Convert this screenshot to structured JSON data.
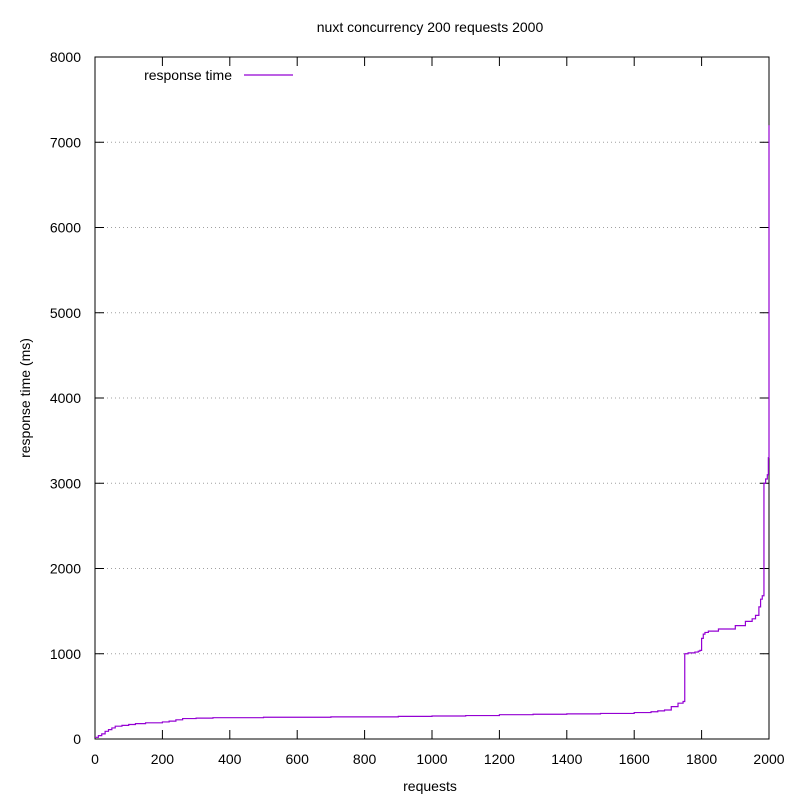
{
  "chart_data": {
    "type": "line",
    "title": "nuxt concurrency 200 requests 2000",
    "xlabel": "requests",
    "ylabel": "response time (ms)",
    "xlim": [
      0,
      2000
    ],
    "ylim": [
      0,
      8000
    ],
    "xticks": [
      0,
      200,
      400,
      600,
      800,
      1000,
      1200,
      1400,
      1600,
      1800,
      2000
    ],
    "yticks": [
      0,
      1000,
      2000,
      3000,
      4000,
      5000,
      6000,
      7000,
      8000
    ],
    "grid": "horizontal dotted",
    "legend": {
      "position": "top-left"
    },
    "series": [
      {
        "name": "response time",
        "color": "#9400d3",
        "step": true,
        "x": [
          0,
          10,
          20,
          30,
          40,
          50,
          60,
          80,
          100,
          120,
          150,
          200,
          220,
          240,
          260,
          300,
          350,
          500,
          700,
          900,
          1000,
          1100,
          1200,
          1300,
          1400,
          1500,
          1600,
          1650,
          1670,
          1690,
          1710,
          1730,
          1745,
          1750,
          1760,
          1780,
          1790,
          1795,
          1800,
          1805,
          1810,
          1820,
          1850,
          1900,
          1930,
          1950,
          1960,
          1970,
          1975,
          1980,
          1985,
          1990,
          1995,
          1998,
          2000,
          2000
        ],
        "y": [
          20,
          40,
          60,
          90,
          110,
          130,
          150,
          160,
          170,
          180,
          190,
          200,
          210,
          225,
          240,
          245,
          250,
          255,
          260,
          265,
          270,
          275,
          285,
          290,
          295,
          300,
          310,
          320,
          330,
          340,
          380,
          420,
          440,
          1000,
          1010,
          1020,
          1030,
          1040,
          1180,
          1230,
          1250,
          1265,
          1290,
          1330,
          1380,
          1410,
          1450,
          1550,
          1640,
          1680,
          3000,
          3050,
          3100,
          3300,
          3300,
          7200
        ]
      }
    ]
  }
}
